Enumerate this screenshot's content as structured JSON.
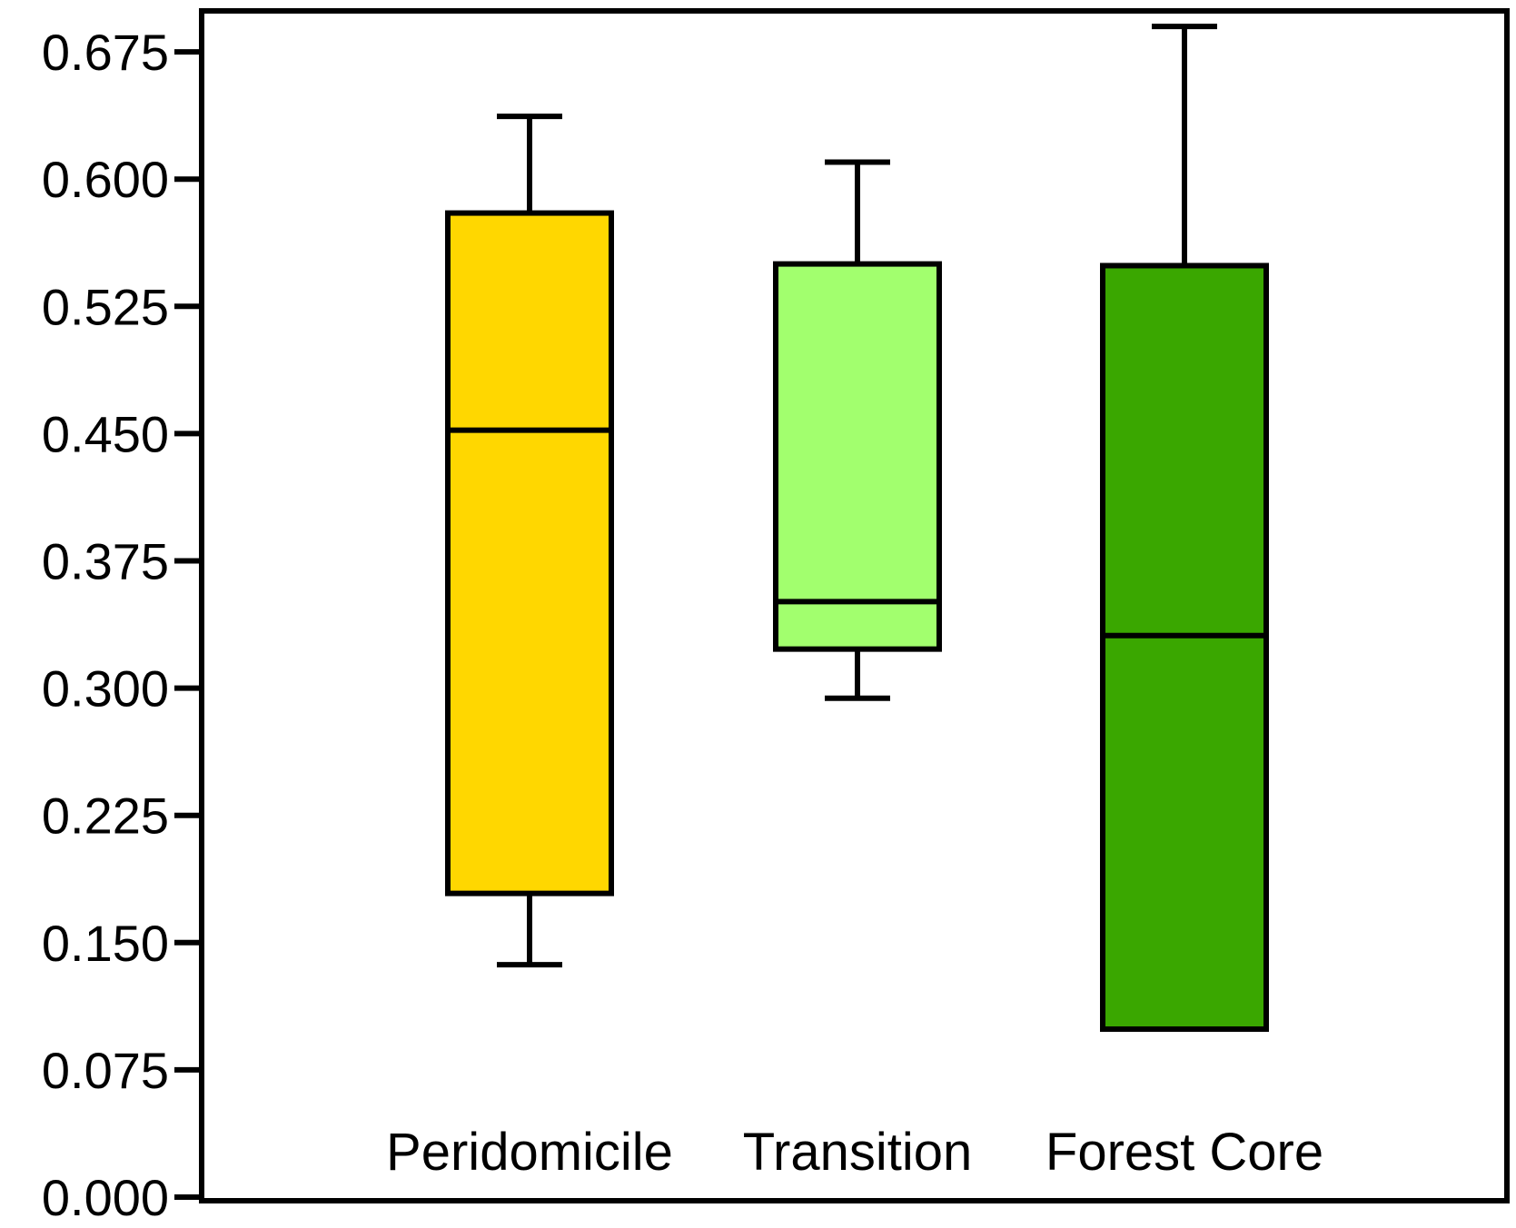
{
  "chart_data": {
    "type": "box",
    "title": "",
    "xlabel": "",
    "ylabel": "",
    "ylim": [
      0,
      0.7
    ],
    "yticks": [
      "0.000",
      "0.075",
      "0.150",
      "0.225",
      "0.300",
      "0.375",
      "0.450",
      "0.525",
      "0.600",
      "0.675"
    ],
    "ytick_values": [
      0,
      0.075,
      0.15,
      0.225,
      0.3,
      0.375,
      0.45,
      0.525,
      0.6,
      0.675
    ],
    "grid": false,
    "legend": "none",
    "categories": [
      "Peridomicile",
      "Transition",
      "Forest Core"
    ],
    "boxes": [
      {
        "category": "Peridomicile",
        "whisker_low": 0.137,
        "q1": 0.179,
        "median": 0.452,
        "q3": 0.58,
        "whisker_high": 0.637,
        "color": "#FFD700"
      },
      {
        "category": "Transition",
        "whisker_low": 0.294,
        "q1": 0.323,
        "median": 0.351,
        "q3": 0.55,
        "whisker_high": 0.61,
        "color": "#A2FF6E"
      },
      {
        "category": "Forest Core",
        "whisker_low": null,
        "q1": 0.099,
        "median": 0.331,
        "q3": 0.549,
        "whisker_high": 0.69,
        "color": "#3AA700"
      }
    ]
  }
}
